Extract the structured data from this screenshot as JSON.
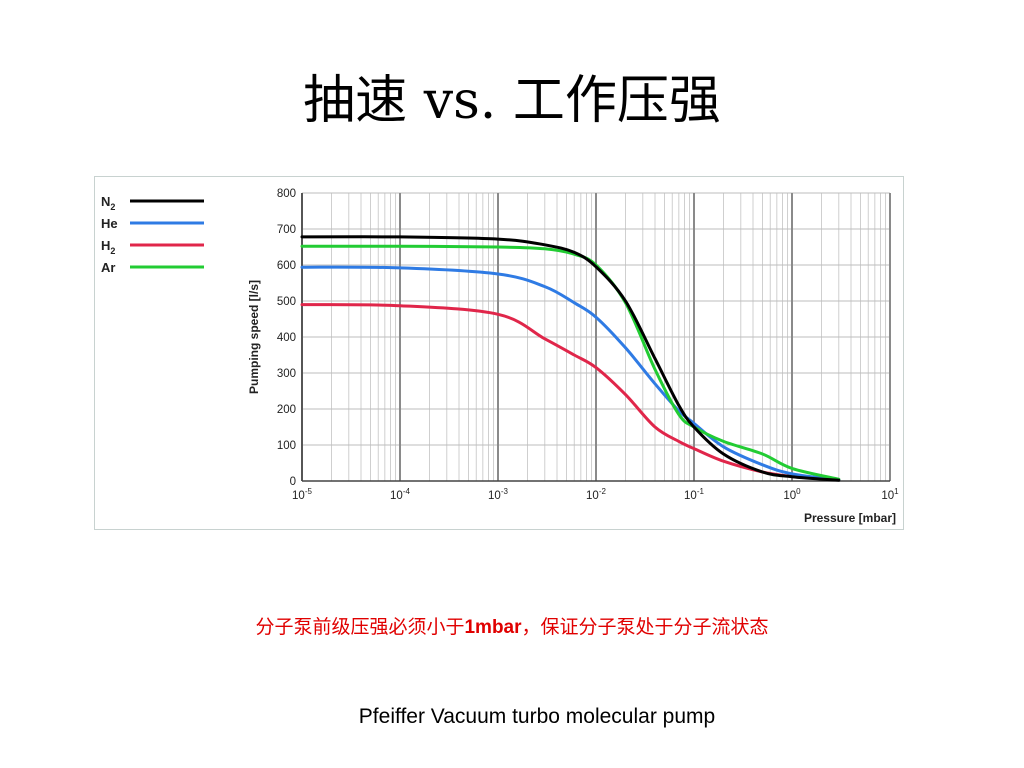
{
  "title": "抽速 vs. 工作压强",
  "note": {
    "part1": "分子泵前级压强必须小于",
    "bold": "1mbar",
    "part2": "，保证分子泵处于分子流状态"
  },
  "caption": "Pfeiffer Vacuum turbo molecular pump",
  "chart_data": {
    "type": "line",
    "xscale": "log",
    "xlim": [
      1e-05,
      10
    ],
    "ylim": [
      0,
      800
    ],
    "ylabel": "Pumping speed [l/s]",
    "xlabel": "Pressure [mbar]",
    "grid": true,
    "legend_position": "left",
    "y_ticks": [
      "0",
      "100",
      "200",
      "300",
      "400",
      "500",
      "600",
      "700",
      "800"
    ],
    "x_ticks": [
      {
        "base": "10",
        "exp": "-5"
      },
      {
        "base": "10",
        "exp": "-4"
      },
      {
        "base": "10",
        "exp": "-3"
      },
      {
        "base": "10",
        "exp": "-2"
      },
      {
        "base": "10",
        "exp": "-1"
      },
      {
        "base": "10",
        "exp": "0"
      },
      {
        "base": "10",
        "exp": "1"
      }
    ],
    "series": [
      {
        "name": "N",
        "sub": "2",
        "color": "#000000",
        "points": [
          [
            1e-05,
            678
          ],
          [
            0.0001,
            678
          ],
          [
            0.001,
            672
          ],
          [
            0.003,
            656
          ],
          [
            0.006,
            635
          ],
          [
            0.01,
            595
          ],
          [
            0.02,
            500
          ],
          [
            0.04,
            340
          ],
          [
            0.07,
            210
          ],
          [
            0.1,
            150
          ],
          [
            0.2,
            75
          ],
          [
            0.5,
            25
          ],
          [
            1,
            12
          ],
          [
            3,
            2
          ]
        ]
      },
      {
        "name": "He",
        "sub": "",
        "color": "#2f7be4",
        "points": [
          [
            1e-05,
            594
          ],
          [
            0.0001,
            592
          ],
          [
            0.001,
            575
          ],
          [
            0.003,
            540
          ],
          [
            0.006,
            495
          ],
          [
            0.01,
            455
          ],
          [
            0.02,
            370
          ],
          [
            0.04,
            270
          ],
          [
            0.07,
            195
          ],
          [
            0.1,
            160
          ],
          [
            0.2,
            95
          ],
          [
            0.5,
            45
          ],
          [
            1,
            20
          ],
          [
            3,
            3
          ]
        ]
      },
      {
        "name": "H",
        "sub": "2",
        "color": "#e0264a",
        "points": [
          [
            1e-05,
            490
          ],
          [
            0.0001,
            487
          ],
          [
            0.001,
            463
          ],
          [
            0.003,
            395
          ],
          [
            0.006,
            350
          ],
          [
            0.01,
            315
          ],
          [
            0.02,
            240
          ],
          [
            0.04,
            150
          ],
          [
            0.07,
            110
          ],
          [
            0.1,
            90
          ],
          [
            0.2,
            55
          ],
          [
            0.5,
            25
          ],
          [
            1,
            12
          ]
        ]
      },
      {
        "name": "Ar",
        "sub": "",
        "color": "#22cc33",
        "points": [
          [
            1e-05,
            652
          ],
          [
            0.0001,
            652
          ],
          [
            0.001,
            650
          ],
          [
            0.003,
            645
          ],
          [
            0.006,
            630
          ],
          [
            0.01,
            600
          ],
          [
            0.02,
            495
          ],
          [
            0.04,
            310
          ],
          [
            0.07,
            185
          ],
          [
            0.1,
            150
          ],
          [
            0.2,
            110
          ],
          [
            0.5,
            75
          ],
          [
            1,
            35
          ],
          [
            3,
            5
          ]
        ]
      }
    ]
  }
}
